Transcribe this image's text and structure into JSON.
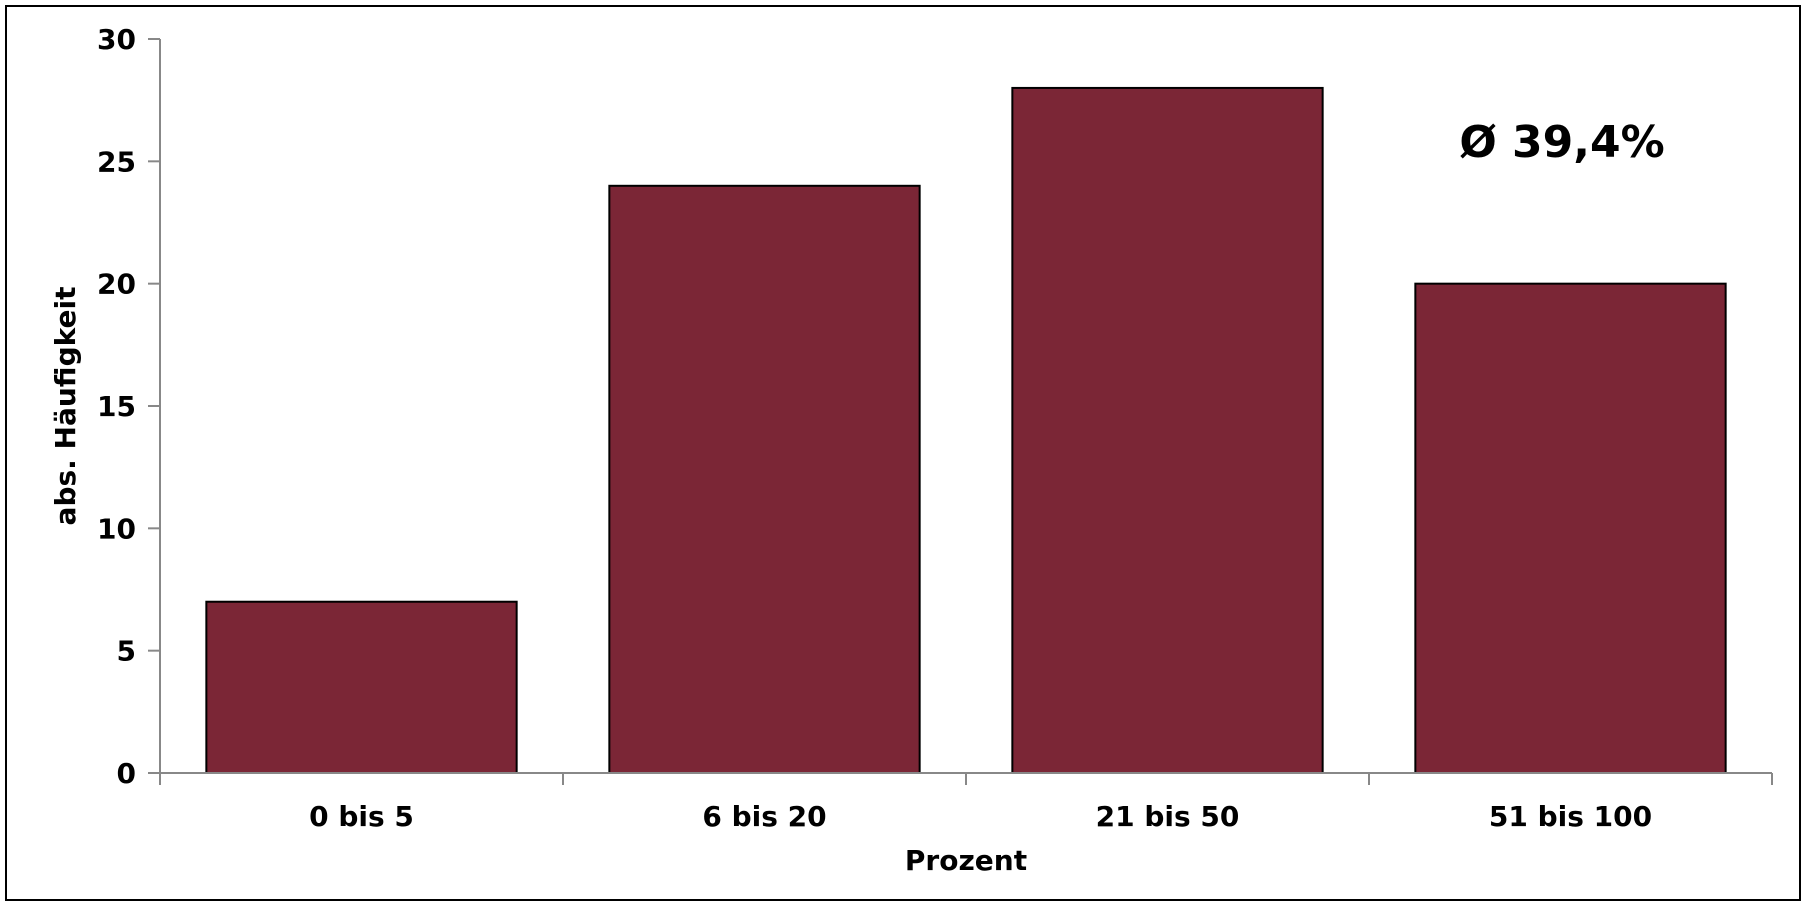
{
  "chart_data": {
    "type": "bar",
    "categories": [
      "0 bis 5",
      "6 bis 20",
      "21 bis 50",
      "51 bis 100"
    ],
    "values": [
      7,
      24,
      28,
      20
    ],
    "xlabel": "Prozent",
    "ylabel": "abs. Häufigkeit",
    "ylim": [
      0,
      30
    ],
    "yticks": [
      0,
      5,
      10,
      15,
      20,
      25,
      30
    ],
    "annotation": "Ø 39,4%",
    "bar_color": "#7b2636",
    "grid": false,
    "legend": "none"
  }
}
